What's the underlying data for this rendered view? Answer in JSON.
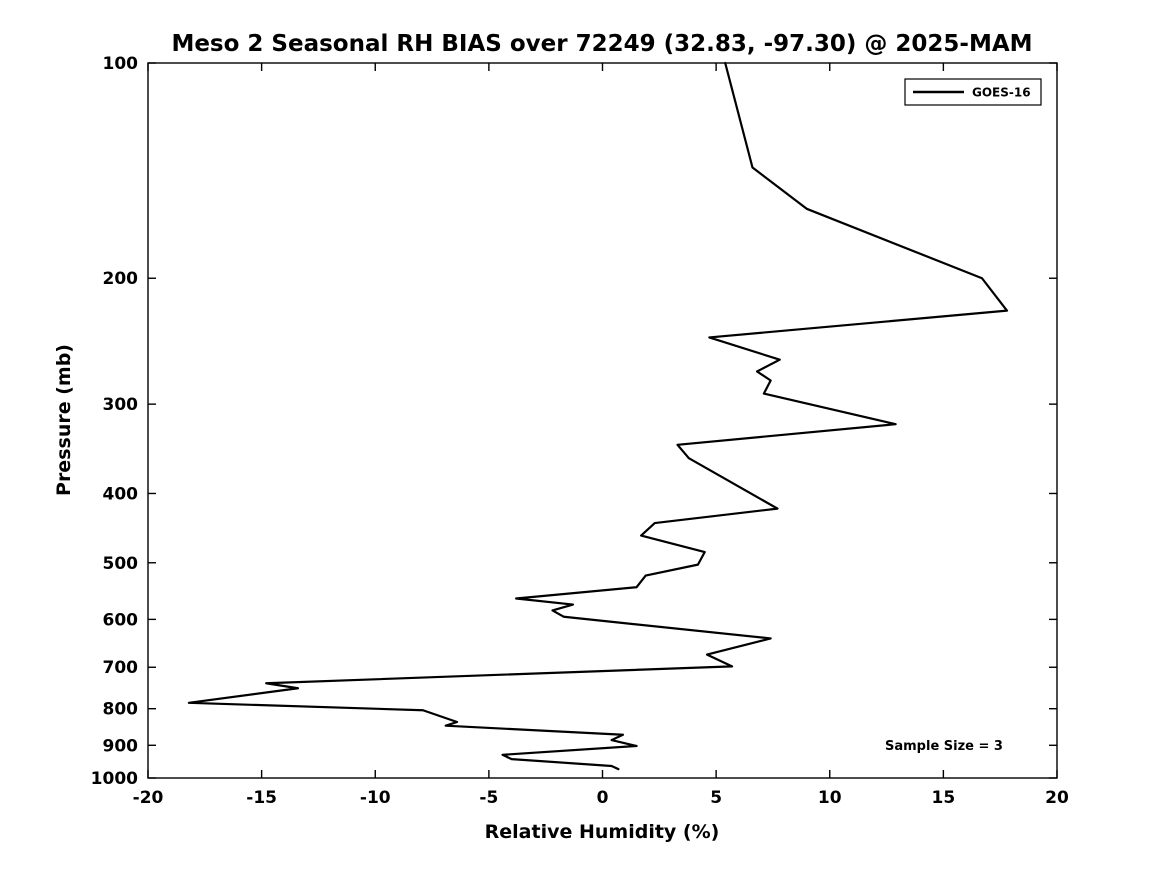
{
  "chart_data": {
    "type": "line",
    "title": "Meso 2 Seasonal RH BIAS over 72249 (32.83, -97.30) @ 2025-MAM",
    "xlabel": "Relative Humidity (%)",
    "ylabel": "Pressure (mb)",
    "xlim": [
      -20,
      20
    ],
    "ylim": [
      100,
      1000
    ],
    "x_scale": "linear",
    "y_scale": "log",
    "y_inverted": true,
    "grid": false,
    "x_ticks": [
      -20,
      -15,
      -10,
      -5,
      0,
      5,
      10,
      15,
      20
    ],
    "y_ticks": [
      100,
      200,
      300,
      400,
      500,
      600,
      700,
      800,
      900,
      1000
    ],
    "legend": {
      "position": "top-right",
      "entries": [
        "GOES-16"
      ]
    },
    "annotation": "Sample Size = 3",
    "line_color": "#000000",
    "background_color": "#ffffff",
    "series": [
      {
        "name": "GOES-16",
        "pressure_mb": [
          100,
          140,
          160,
          200,
          222,
          242,
          260,
          270,
          278,
          290,
          320,
          342,
          357,
          420,
          440,
          458,
          483,
          503,
          521,
          541,
          561,
          572,
          583,
          595,
          638,
          672,
          698,
          737,
          749,
          785,
          804,
          835,
          845,
          870,
          885,
          902,
          928,
          941,
          962,
          972
        ],
        "rh_bias_pct": [
          5.4,
          6.6,
          9.0,
          16.7,
          17.8,
          4.7,
          7.8,
          6.8,
          7.4,
          7.1,
          12.9,
          3.3,
          3.8,
          7.7,
          2.3,
          1.7,
          4.5,
          4.2,
          1.9,
          1.5,
          -3.8,
          -1.3,
          -2.2,
          -1.7,
          7.4,
          4.6,
          5.7,
          -14.8,
          -13.4,
          -18.2,
          -7.9,
          -6.4,
          -6.9,
          0.9,
          0.4,
          1.5,
          -4.4,
          -4.0,
          0.4,
          0.7
        ]
      }
    ]
  }
}
